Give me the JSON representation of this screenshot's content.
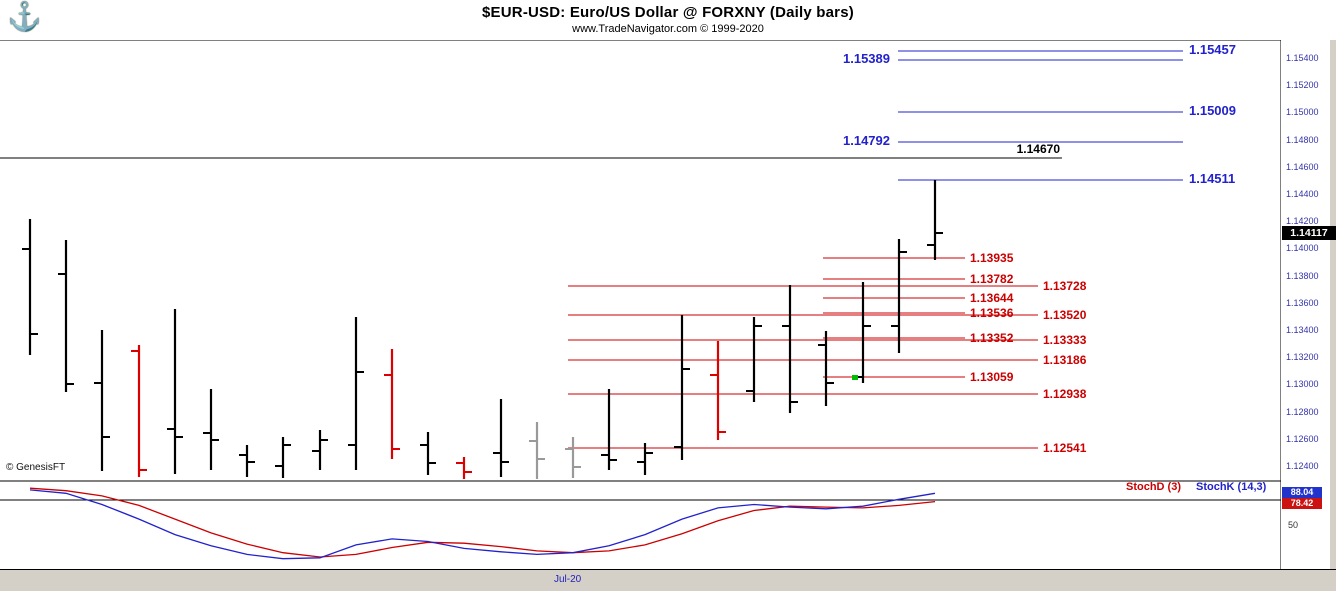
{
  "header": {
    "title": "$EUR-USD:  Euro/US Dollar @ FORXNY  (Daily bars)",
    "subtitle": "www.TradeNavigator.com © 1999-2020"
  },
  "watermark": "© GenesisFT",
  "logo_icon": "anchor-icon",
  "colors": {
    "bar_black": "#000000",
    "bar_red": "#dd0000",
    "bar_gray": "#999999",
    "level_blue": "#2222cc",
    "level_red": "#cc0000",
    "level_black": "#000000",
    "axis_text": "#3333aa",
    "stoch_k": "#2222cc",
    "stoch_d": "#cc0000",
    "badge_last_bg": "#000000",
    "frame_bg": "#d4d0c8",
    "marker_green": "#00bb00"
  },
  "chart_data": {
    "type": "bar",
    "subtype": "ohlc-daily-bars",
    "symbol": "$EUR-USD",
    "description": "Euro/US Dollar @ FORXNY",
    "period": "Daily bars",
    "last_price": "1.14117",
    "price_axis": {
      "min": 1.124,
      "max": 1.154,
      "step": 0.002,
      "ticks": [
        "1.15400",
        "1.15200",
        "1.15000",
        "1.14800",
        "1.14600",
        "1.14400",
        "1.14200",
        "1.14000",
        "1.13800",
        "1.13600",
        "1.13400",
        "1.13200",
        "1.13000",
        "1.12800",
        "1.12600",
        "1.12400"
      ]
    },
    "x_axis": {
      "labels": [
        "Jul-20"
      ]
    },
    "bars": [
      {
        "o": 1.14,
        "h": 1.1422,
        "l": 1.1322,
        "c": 1.1338,
        "color": "black"
      },
      {
        "o": 1.1382,
        "h": 1.1407,
        "l": 1.1295,
        "c": 1.1301,
        "color": "black"
      },
      {
        "o": 1.1302,
        "h": 1.1341,
        "l": 1.1237,
        "c": 1.1262,
        "color": "black"
      },
      {
        "o": 1.1325,
        "h": 1.133,
        "l": 1.1233,
        "c": 1.1238,
        "color": "red"
      },
      {
        "o": 1.1268,
        "h": 1.1356,
        "l": 1.1235,
        "c": 1.1262,
        "color": "black"
      },
      {
        "o": 1.1265,
        "h": 1.1297,
        "l": 1.1238,
        "c": 1.126,
        "color": "black"
      },
      {
        "o": 1.1249,
        "h": 1.1256,
        "l": 1.1233,
        "c": 1.1244,
        "color": "black"
      },
      {
        "o": 1.1241,
        "h": 1.1262,
        "l": 1.1232,
        "c": 1.1256,
        "color": "black"
      },
      {
        "o": 1.1252,
        "h": 1.1267,
        "l": 1.1238,
        "c": 1.126,
        "color": "black"
      },
      {
        "o": 1.1256,
        "h": 1.135,
        "l": 1.1238,
        "c": 1.131,
        "color": "black"
      },
      {
        "o": 1.1308,
        "h": 1.1327,
        "l": 1.1246,
        "c": 1.1253,
        "color": "red"
      },
      {
        "o": 1.1256,
        "h": 1.1266,
        "l": 1.1234,
        "c": 1.1243,
        "color": "black"
      },
      {
        "o": 1.1243,
        "h": 1.1247,
        "l": 1.1231,
        "c": 1.1236,
        "color": "red"
      },
      {
        "o": 1.125,
        "h": 1.129,
        "l": 1.1233,
        "c": 1.1244,
        "color": "black"
      },
      {
        "o": 1.1259,
        "h": 1.1273,
        "l": 1.1231,
        "c": 1.1246,
        "color": "gray"
      },
      {
        "o": 1.1253,
        "h": 1.1262,
        "l": 1.1232,
        "c": 1.124,
        "color": "gray"
      },
      {
        "o": 1.1249,
        "h": 1.1297,
        "l": 1.1238,
        "c": 1.1245,
        "color": "black"
      },
      {
        "o": 1.1244,
        "h": 1.1258,
        "l": 1.1234,
        "c": 1.125,
        "color": "black"
      },
      {
        "o": 1.1255,
        "h": 1.1352,
        "l": 1.1245,
        "c": 1.1312,
        "color": "black"
      },
      {
        "o": 1.1308,
        "h": 1.1333,
        "l": 1.126,
        "c": 1.1266,
        "color": "red"
      },
      {
        "o": 1.1296,
        "h": 1.135,
        "l": 1.1288,
        "c": 1.1344,
        "color": "black"
      },
      {
        "o": 1.1344,
        "h": 1.1374,
        "l": 1.128,
        "c": 1.1288,
        "color": "black"
      },
      {
        "o": 1.133,
        "h": 1.134,
        "l": 1.1285,
        "c": 1.1302,
        "color": "black"
      },
      {
        "o": 1.1306,
        "h": 1.1376,
        "l": 1.1302,
        "c": 1.1344,
        "color": "black"
      },
      {
        "o": 1.1344,
        "h": 1.1408,
        "l": 1.1324,
        "c": 1.1398,
        "color": "black"
      },
      {
        "o": 1.1403,
        "h": 1.14511,
        "l": 1.1392,
        "c": 1.14117,
        "color": "black"
      }
    ],
    "levels": {
      "black": [
        {
          "label": "1.14670",
          "value": 1.1467
        }
      ],
      "blue": [
        {
          "label": "1.15457",
          "value": 1.15457,
          "side": "right"
        },
        {
          "label": "1.15389",
          "value": 1.15389,
          "side": "left"
        },
        {
          "label": "1.15009",
          "value": 1.15009,
          "side": "right"
        },
        {
          "label": "1.14792",
          "value": 1.14792,
          "side": "left"
        },
        {
          "label": "1.14511",
          "value": 1.14511,
          "side": "right"
        }
      ],
      "red_short": [
        {
          "label": "1.13935",
          "value": 1.13935
        },
        {
          "label": "1.13782",
          "value": 1.13782
        },
        {
          "label": "1.13644",
          "value": 1.13644
        },
        {
          "label": "1.13536",
          "value": 1.13536
        },
        {
          "label": "1.13352",
          "value": 1.13352
        },
        {
          "label": "1.13059",
          "value": 1.13059
        }
      ],
      "red_long": [
        {
          "label": "1.13728",
          "value": 1.13728
        },
        {
          "label": "1.13520",
          "value": 1.1352
        },
        {
          "label": "1.13333",
          "value": 1.13333
        },
        {
          "label": "1.13186",
          "value": 1.13186
        },
        {
          "label": "1.12938",
          "value": 1.12938
        },
        {
          "label": "1.12541",
          "value": 1.12541
        }
      ]
    },
    "marker": {
      "bar": 23,
      "price": 1.13059,
      "color": "#00bb00"
    },
    "stochastic": {
      "d_label": "StochD (3)",
      "k_label": "StochK (14,3)",
      "k_last": "88.04",
      "d_last": "78.42",
      "mid_label": "50",
      "overbought_line": 80,
      "k": [
        92,
        88,
        75,
        58,
        40,
        27,
        17,
        12,
        13,
        28,
        35,
        32,
        24,
        20,
        17,
        19,
        27,
        40,
        58,
        71,
        75,
        72,
        70,
        73,
        81,
        88.04
      ],
      "d": [
        94,
        91,
        85,
        74,
        58,
        42,
        29,
        19,
        14,
        17,
        25,
        31,
        30,
        26,
        21,
        19,
        21,
        28,
        41,
        56,
        68,
        73,
        72,
        71,
        74,
        78.42
      ]
    }
  }
}
